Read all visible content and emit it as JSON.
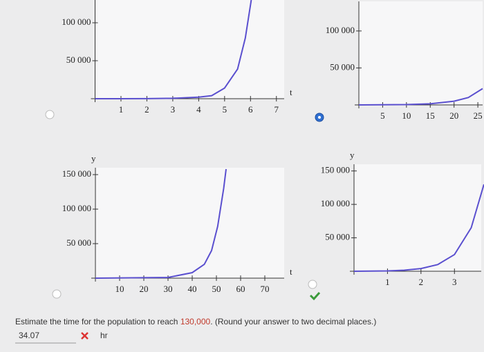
{
  "chart_data": [
    {
      "type": "line",
      "xlabel": "t",
      "x": [
        0,
        1,
        2,
        3,
        4,
        4.5,
        5,
        5.5,
        5.8,
        6.03
      ],
      "series": [
        {
          "color": "#5a4fcf",
          "values": [
            0,
            0,
            100,
            500,
            2000,
            4000,
            14000,
            39000,
            80000,
            130000
          ]
        }
      ],
      "xlim": [
        0,
        7.3
      ],
      "ylim": [
        0,
        130000
      ],
      "xticks": [
        1,
        2,
        3,
        4,
        5,
        6,
        7
      ],
      "yticks": [
        {
          "value": 50000,
          "label": "50 000"
        },
        {
          "value": 100000,
          "label": "100 000"
        }
      ]
    },
    {
      "type": "line",
      "x": [
        0,
        10,
        15,
        20,
        23,
        26
      ],
      "series": [
        {
          "color": "#5a4fcf",
          "values": [
            0,
            500,
            1500,
            5000,
            10000,
            22000
          ]
        }
      ],
      "xlim": [
        0,
        26
      ],
      "ylim": [
        0,
        140000
      ],
      "xticks": [
        5,
        10,
        15,
        20,
        25
      ],
      "yticks": [
        {
          "value": 50000,
          "label": "50 000"
        },
        {
          "value": 100000,
          "label": "100 000"
        }
      ]
    },
    {
      "type": "line",
      "xlabel": "t",
      "ylabel": "y",
      "x": [
        0,
        30,
        40,
        45,
        48,
        50.5,
        53,
        54
      ],
      "series": [
        {
          "color": "#5a4fcf",
          "values": [
            0,
            1000,
            8000,
            20000,
            40000,
            75000,
            130000,
            158000
          ]
        }
      ],
      "xlim": [
        0,
        78
      ],
      "ylim": [
        0,
        160000
      ],
      "xticks": [
        10,
        20,
        30,
        40,
        50,
        60,
        70
      ],
      "yticks": [
        {
          "value": 50000,
          "label": "50 000"
        },
        {
          "value": 100000,
          "label": "100 000"
        },
        {
          "value": 150000,
          "label": "150 000"
        }
      ]
    },
    {
      "type": "line",
      "ylabel": "y",
      "x": [
        0,
        1,
        1.5,
        2,
        2.5,
        3,
        3.5,
        3.88
      ],
      "series": [
        {
          "color": "#5a4fcf",
          "values": [
            0,
            500,
            1500,
            4000,
            10000,
            25000,
            65000,
            130000
          ]
        }
      ],
      "xlim": [
        0,
        3.8
      ],
      "ylim": [
        0,
        160000
      ],
      "xticks": [
        1,
        2,
        3
      ],
      "yticks": [
        {
          "value": 50000,
          "label": "50 000"
        },
        {
          "value": 100000,
          "label": "100 000"
        },
        {
          "value": 150000,
          "label": "150 000"
        }
      ]
    }
  ],
  "question": {
    "prefix": "Estimate the time for the population to reach ",
    "highlight": "130,000",
    "suffix": ". (Round your answer to two decimal places.)",
    "answer": "34.07",
    "unit": "hr"
  }
}
